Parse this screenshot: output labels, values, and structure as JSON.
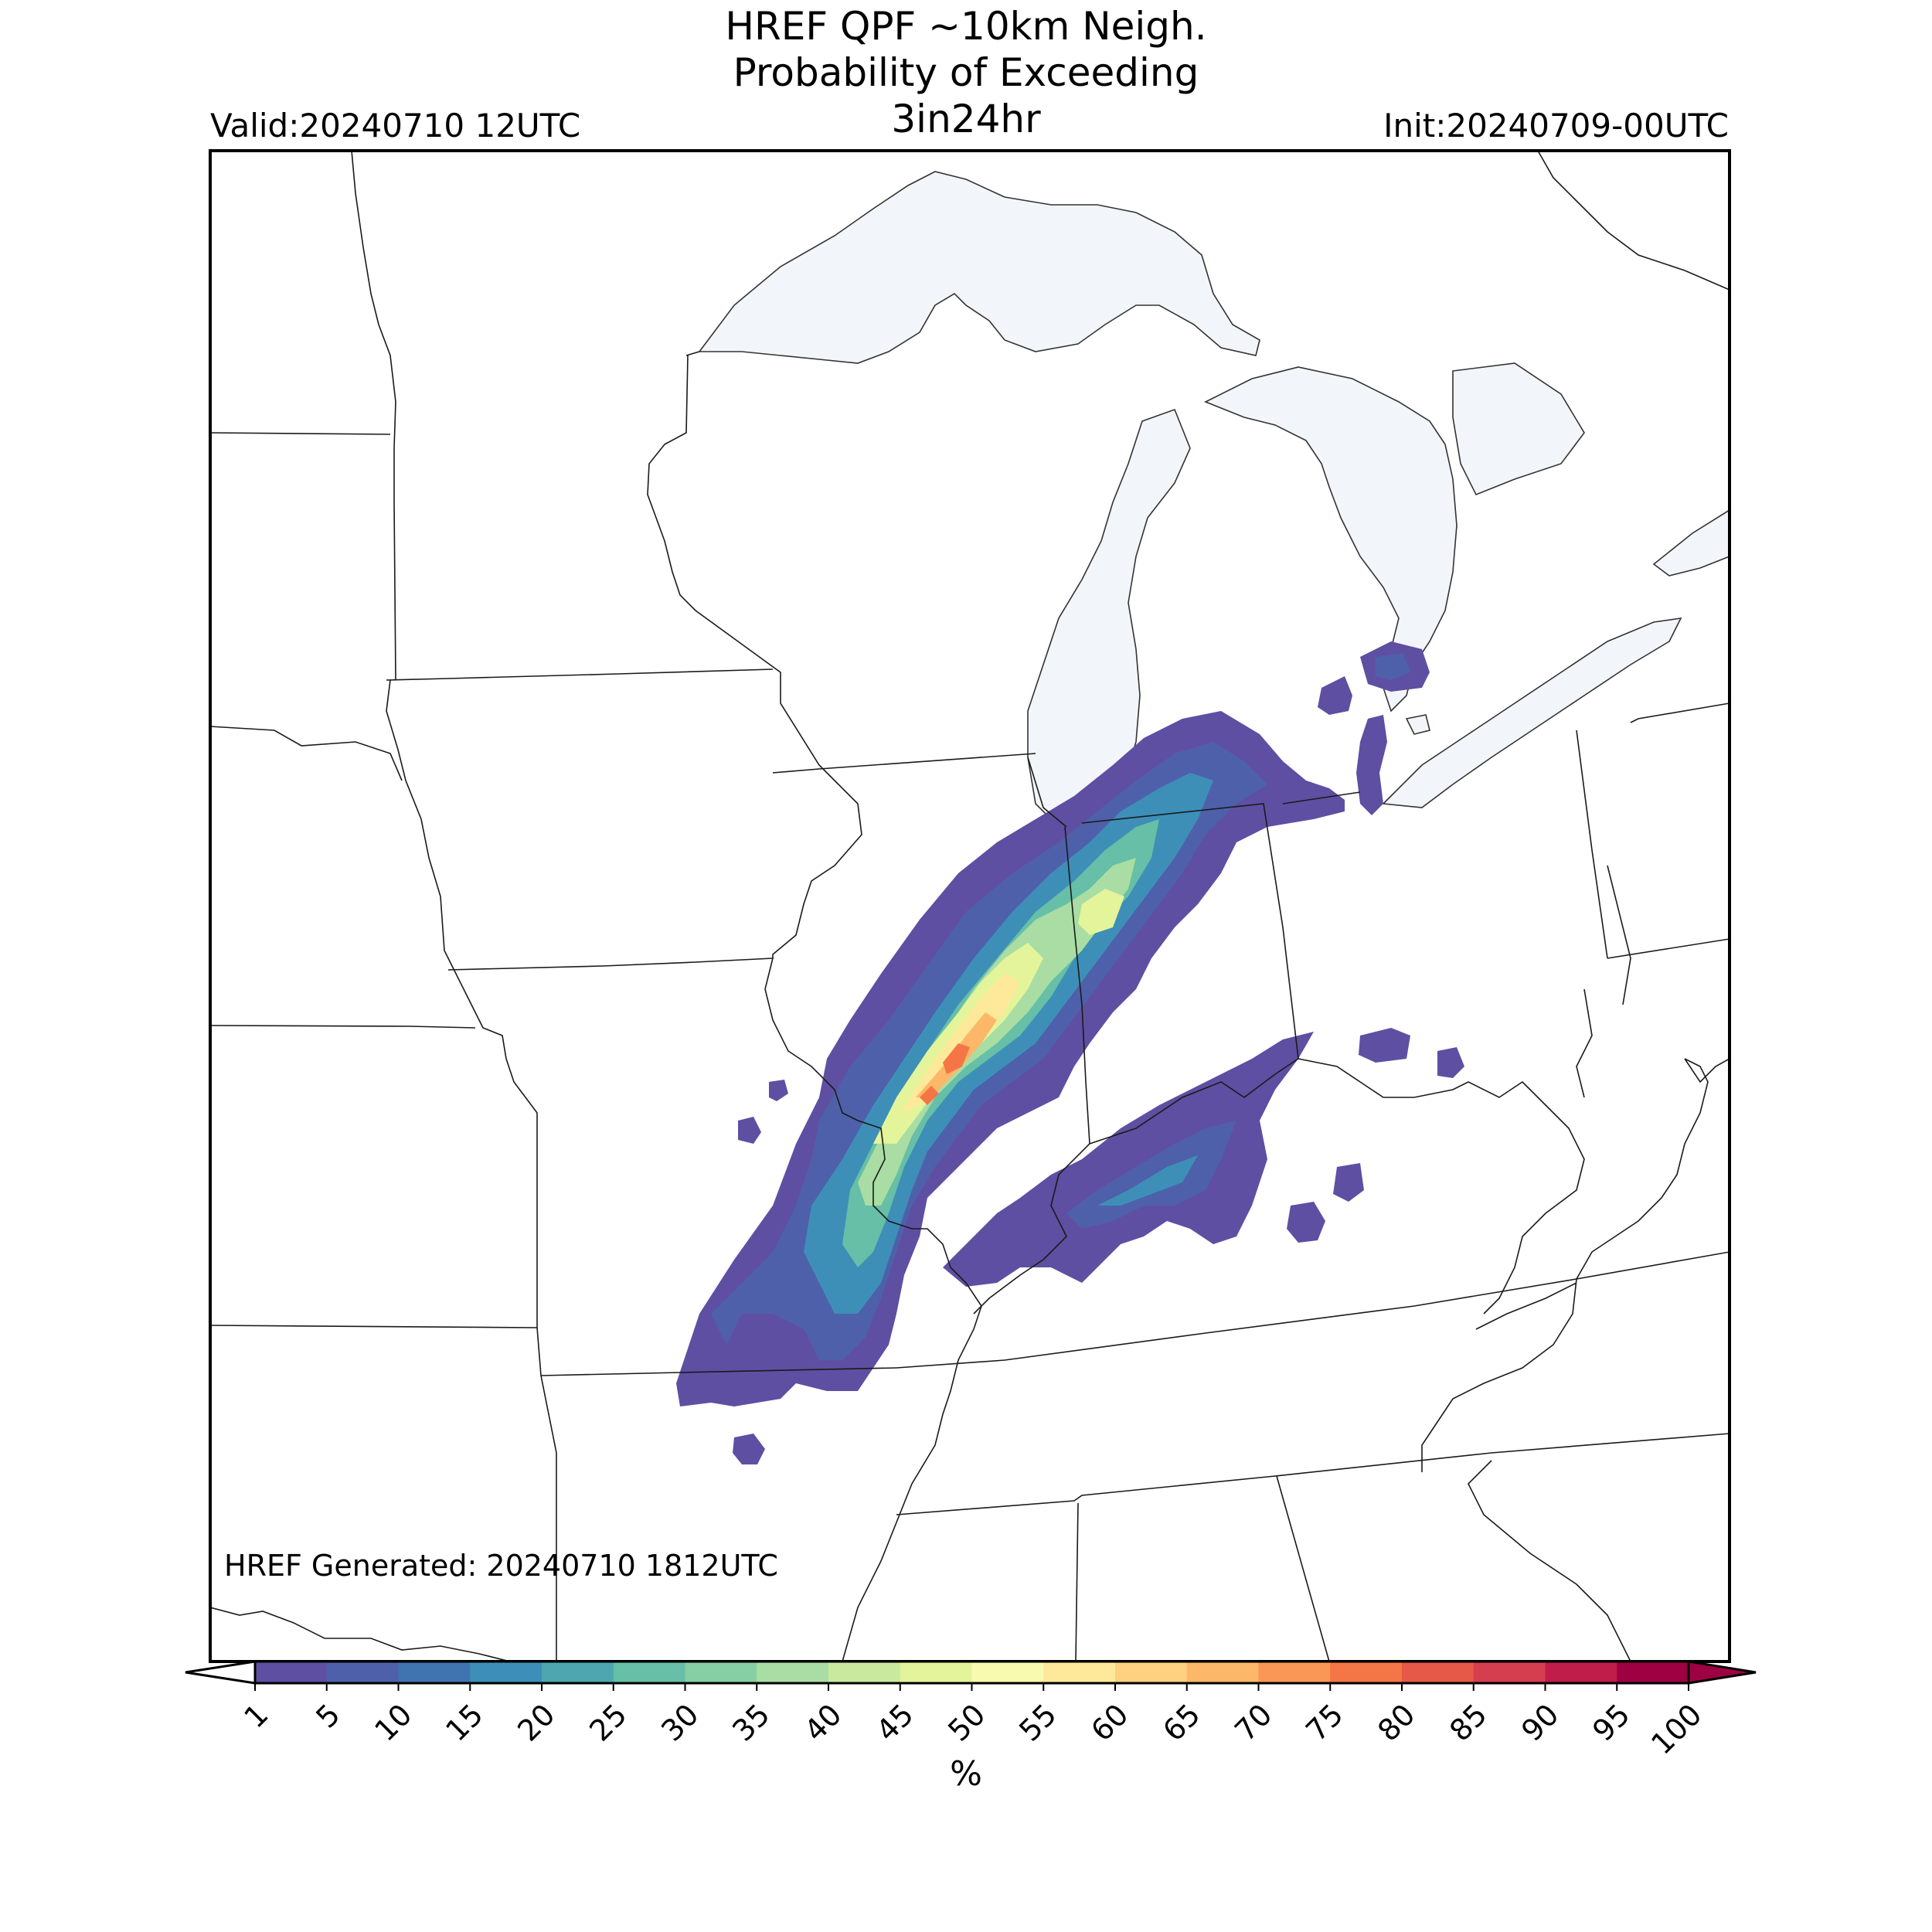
{
  "header": {
    "title_line1": "HREF QPF ~10km Neigh.",
    "title_line2": "Probability of Exceeding",
    "title_line3": "3in24hr",
    "valid": "Valid:20240710 12UTC",
    "init": "Init:20240709-00UTC"
  },
  "footer": {
    "generated": "HREF Generated: 20240710 1812UTC"
  },
  "colorbar": {
    "unit": "%",
    "ticks": [
      "1",
      "5",
      "10",
      "15",
      "20",
      "25",
      "30",
      "35",
      "40",
      "45",
      "50",
      "55",
      "60",
      "65",
      "70",
      "75",
      "80",
      "85",
      "90",
      "95",
      "100"
    ],
    "colors": [
      "#5e4fa2",
      "#4f60aa",
      "#3f74b1",
      "#3d8fb8",
      "#4da6b0",
      "#66bfa6",
      "#86cfa5",
      "#a9dda3",
      "#c9e99e",
      "#e3f49a",
      "#f8fbaf",
      "#fee99a",
      "#fed180",
      "#fdb768",
      "#fa9656",
      "#f47647",
      "#e65847",
      "#d53e4f",
      "#c01d4b",
      "#9e0142"
    ],
    "under_color": "#ffffff",
    "over_color": "#9e0142"
  },
  "map": {
    "land_color": "#ffffff",
    "water_color": "#f2f5fa",
    "border_color": "#222222"
  }
}
